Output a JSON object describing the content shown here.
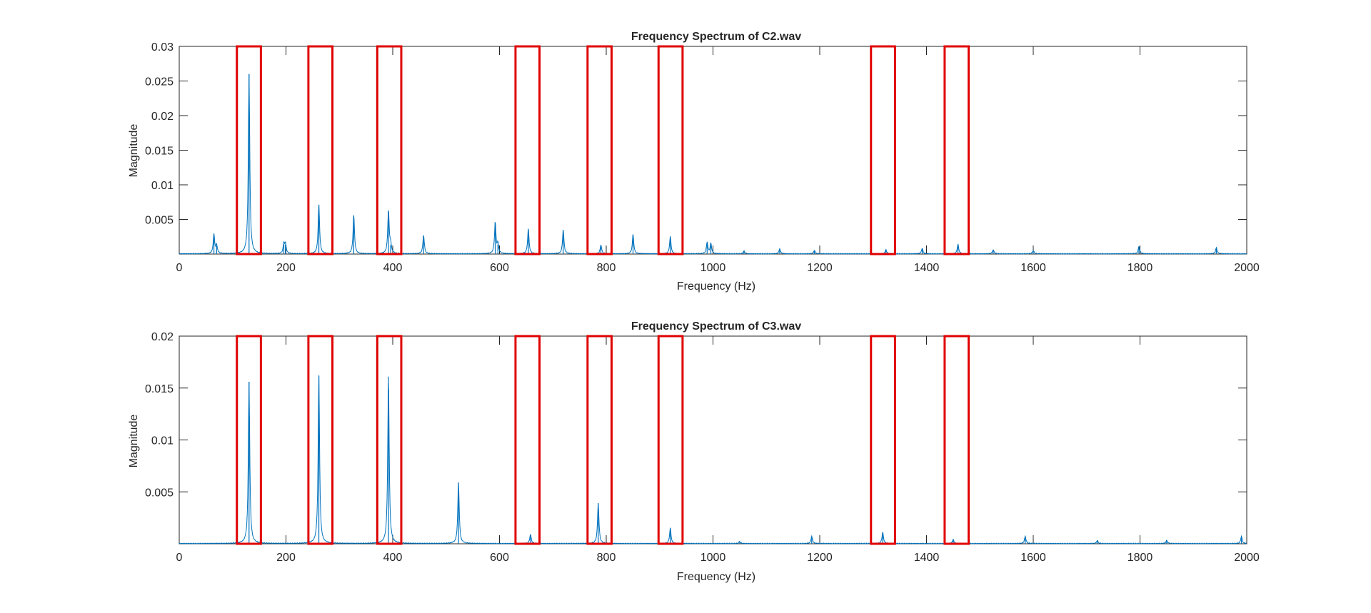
{
  "chart_data": [
    {
      "type": "line",
      "title": "Frequency Spectrum of C2.wav",
      "xlabel": "Frequency (Hz)",
      "ylabel": "Magnitude",
      "xlim": [
        0,
        2000
      ],
      "ylim": [
        0,
        0.03
      ],
      "xticks": [
        0,
        200,
        400,
        600,
        800,
        1000,
        1200,
        1400,
        1600,
        1800,
        2000
      ],
      "xtick_labels": [
        "0",
        "200",
        "400",
        "600",
        "800",
        "1000",
        "1200",
        "1400",
        "1600",
        "1800",
        "2000"
      ],
      "yticks": [
        0.005,
        0.01,
        0.015,
        0.02,
        0.025,
        0.03
      ],
      "ytick_labels": [
        "0.005",
        "0.01",
        "0.015",
        "0.02",
        "0.025",
        "0.03"
      ],
      "grid": false,
      "series_color": "#0072BD",
      "peaks": [
        {
          "x": 65,
          "y": 0.0028
        },
        {
          "x": 70,
          "y": 0.0012
        },
        {
          "x": 130.8,
          "y": 0.026
        },
        {
          "x": 196,
          "y": 0.0014
        },
        {
          "x": 199,
          "y": 0.0014
        },
        {
          "x": 261.6,
          "y": 0.0071
        },
        {
          "x": 327,
          "y": 0.0056
        },
        {
          "x": 392,
          "y": 0.0063
        },
        {
          "x": 396,
          "y": 0.0013
        },
        {
          "x": 457.8,
          "y": 0.0027
        },
        {
          "x": 592,
          "y": 0.0046
        },
        {
          "x": 597,
          "y": 0.0014
        },
        {
          "x": 654,
          "y": 0.0036
        },
        {
          "x": 719.4,
          "y": 0.0035
        },
        {
          "x": 790,
          "y": 0.0013
        },
        {
          "x": 850.2,
          "y": 0.0028
        },
        {
          "x": 920,
          "y": 0.0025
        },
        {
          "x": 989,
          "y": 0.0017
        },
        {
          "x": 996,
          "y": 0.0015
        },
        {
          "x": 1058,
          "y": 0.0004
        },
        {
          "x": 1125,
          "y": 0.0007
        },
        {
          "x": 1190,
          "y": 0.0005
        },
        {
          "x": 1324,
          "y": 0.0006
        },
        {
          "x": 1392,
          "y": 0.0008
        },
        {
          "x": 1459,
          "y": 0.0014
        },
        {
          "x": 1525,
          "y": 0.0006
        },
        {
          "x": 1600,
          "y": 0.0005
        },
        {
          "x": 1798,
          "y": 0.0011
        },
        {
          "x": 1943,
          "y": 0.0009
        }
      ],
      "highlight_ranges": [
        [
          108,
          153
        ],
        [
          242,
          287
        ],
        [
          371,
          416
        ],
        [
          630,
          675
        ],
        [
          765,
          810
        ],
        [
          898,
          943
        ],
        [
          1296,
          1341
        ],
        [
          1434,
          1479
        ]
      ],
      "highlight_color": "#E00000"
    },
    {
      "type": "line",
      "title": "Frequency Spectrum of C3.wav",
      "xlabel": "Frequency (Hz)",
      "ylabel": "Magnitude",
      "xlim": [
        0,
        2000
      ],
      "ylim": [
        0,
        0.02
      ],
      "xticks": [
        0,
        200,
        400,
        600,
        800,
        1000,
        1200,
        1400,
        1600,
        1800,
        2000
      ],
      "xtick_labels": [
        "0",
        "200",
        "400",
        "600",
        "800",
        "1000",
        "1200",
        "1400",
        "1600",
        "1800",
        "2000"
      ],
      "yticks": [
        0.005,
        0.01,
        0.015,
        0.02
      ],
      "ytick_labels": [
        "0.005",
        "0.01",
        "0.015",
        "0.02"
      ],
      "grid": false,
      "series_color": "#0072BD",
      "peaks": [
        {
          "x": 130.8,
          "y": 0.0156
        },
        {
          "x": 261.6,
          "y": 0.0162
        },
        {
          "x": 392,
          "y": 0.0161
        },
        {
          "x": 523.2,
          "y": 0.0059
        },
        {
          "x": 658,
          "y": 0.0009
        },
        {
          "x": 785,
          "y": 0.0039
        },
        {
          "x": 920,
          "y": 0.0015
        },
        {
          "x": 1050,
          "y": 0.0002
        },
        {
          "x": 1185,
          "y": 0.0007
        },
        {
          "x": 1318,
          "y": 0.0011
        },
        {
          "x": 1450,
          "y": 0.0004
        },
        {
          "x": 1585,
          "y": 0.0007
        },
        {
          "x": 1720,
          "y": 0.0003
        },
        {
          "x": 1850,
          "y": 0.0003
        },
        {
          "x": 1990,
          "y": 0.0007
        }
      ],
      "highlight_ranges": [
        [
          108,
          153
        ],
        [
          242,
          287
        ],
        [
          371,
          416
        ],
        [
          630,
          675
        ],
        [
          765,
          810
        ],
        [
          898,
          943
        ],
        [
          1296,
          1341
        ],
        [
          1434,
          1479
        ]
      ],
      "highlight_color": "#E00000"
    }
  ]
}
